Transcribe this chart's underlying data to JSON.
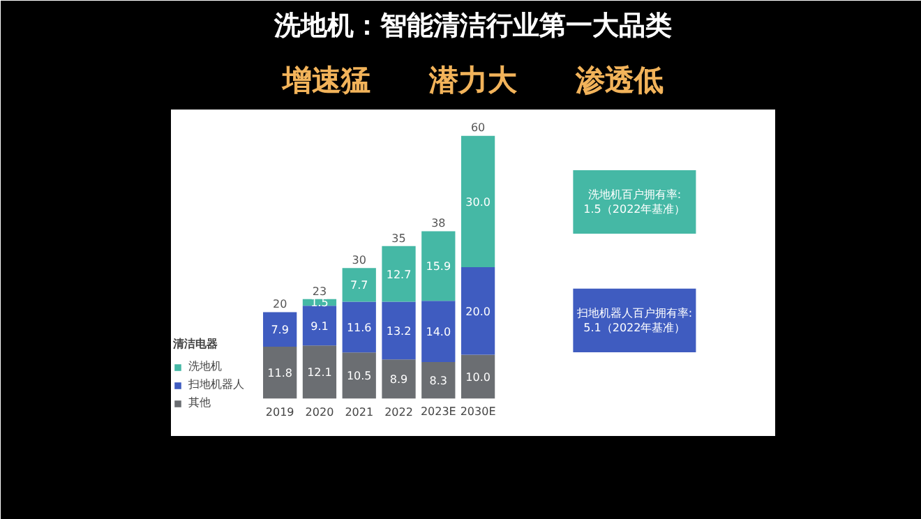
{
  "chart_data": {
    "type": "bar",
    "stacked": true,
    "title": "洗地机：智能清洁行业第一大品类",
    "subtitle": "增速猛　　潜力大　　渗透低",
    "legend_title": "清洁电器",
    "legend": "left",
    "categories": [
      "2019",
      "2020",
      "2021",
      "2022",
      "2023E",
      "2030E"
    ],
    "series": [
      {
        "name": "其他",
        "color": "#6b6e72",
        "values": [
          11.8,
          12.1,
          10.5,
          8.9,
          8.3,
          10.0
        ],
        "value_labels": [
          "11.8",
          "12.1",
          "10.5",
          "8.9",
          "8.3",
          "10.0"
        ]
      },
      {
        "name": "扫地机器人",
        "color": "#3f5cc0",
        "values": [
          7.9,
          9.1,
          11.6,
          13.2,
          14.0,
          20.0
        ],
        "value_labels": [
          "7.9",
          "9.1",
          "11.6",
          "13.2",
          "14.0",
          "20.0"
        ]
      },
      {
        "name": "洗地机",
        "color": "#45b8a5",
        "values": [
          null,
          1.5,
          7.7,
          12.7,
          15.9,
          30.0
        ],
        "value_labels": [
          null,
          "1.5",
          "7.7",
          "12.7",
          "15.9",
          "30.0"
        ]
      }
    ],
    "totals": [
      "20",
      "23",
      "30",
      "35",
      "38",
      "60"
    ],
    "annotations": [
      "洗地机百户拥有率:\n1.5（2022年基准）",
      "扫地机器人百户拥有率:\n5.1（2022年基准）"
    ]
  }
}
